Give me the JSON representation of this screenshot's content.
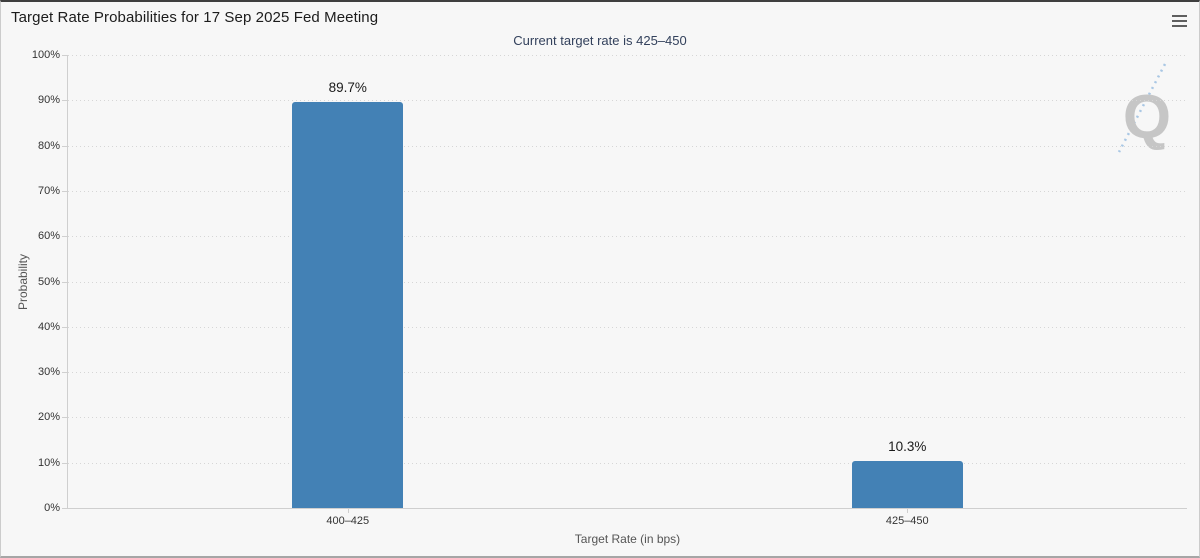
{
  "header": {
    "title": "Target Rate Probabilities for 17 Sep 2025 Fed Meeting",
    "subtitle": "Current target rate is 425–450",
    "menu_icon": "hamburger-menu-icon"
  },
  "watermark": {
    "letter": "Q"
  },
  "chart_data": {
    "type": "bar",
    "title": "Target Rate Probabilities for 17 Sep 2025 Fed Meeting",
    "subtitle": "Current target rate is 425–450",
    "categories": [
      "400–425",
      "425–450"
    ],
    "values": [
      89.7,
      10.3
    ],
    "data_labels": [
      "89.7%",
      "10.3%"
    ],
    "xlabel": "Target Rate (in bps)",
    "ylabel": "Probability",
    "ylim": [
      0,
      100
    ],
    "ytick_step": 10,
    "ytick_suffix": "%",
    "bar_color": "#4381b5",
    "grid": "dotted-horizontal",
    "legend": "none"
  },
  "colors": {
    "background": "#f7f7f7",
    "axis_line": "#cfcfcf",
    "grid_dot": "#d6d6d6",
    "title_text": "#1c1c1c",
    "subtitle_text": "#33415c",
    "tick_text": "#333333",
    "axis_title_text": "#555555",
    "bar": "#4381b5",
    "watermark_gray": "#c6c6c6",
    "watermark_blue": "#a9c7e4"
  }
}
